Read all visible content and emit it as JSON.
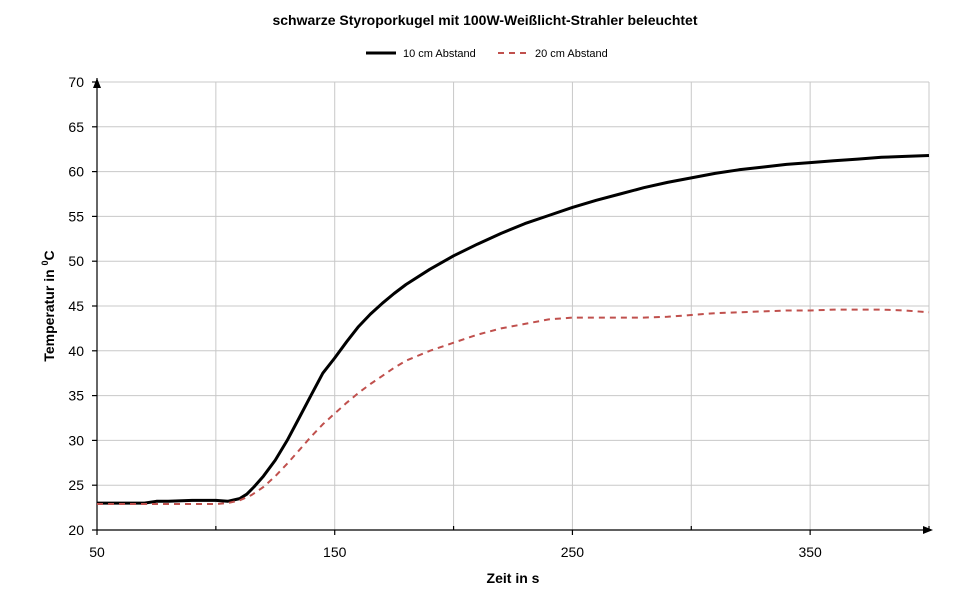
{
  "chart_data": {
    "type": "line",
    "title": "schwarze Styroporkugel mit 100W-Weißlicht-Strahler beleuchtet",
    "xlabel": "Zeit in s",
    "ylabel": "Temperatur in ",
    "ylabel_sup": "0",
    "ylabel_unit": "C",
    "xlim": [
      50,
      400
    ],
    "ylim": [
      20,
      70
    ],
    "x_ticks": [
      50,
      150,
      250,
      350
    ],
    "x_tick_labels": [
      "50",
      "150",
      "250",
      "350"
    ],
    "x_minor_ticks": [
      100,
      200,
      300,
      400
    ],
    "y_ticks": [
      20,
      25,
      30,
      35,
      40,
      45,
      50,
      55,
      60,
      65,
      70
    ],
    "y_tick_labels": [
      "20",
      "25",
      "30",
      "35",
      "40",
      "45",
      "50",
      "55",
      "60",
      "65",
      "70"
    ],
    "grid": true,
    "legend_position": "top-center",
    "series": [
      {
        "name": "10 cm Abstand",
        "color": "#000000",
        "style": "solid",
        "x": [
          50,
          60,
          70,
          75,
          80,
          90,
          100,
          105,
          110,
          113,
          116,
          120,
          125,
          130,
          135,
          140,
          145,
          150,
          155,
          160,
          165,
          170,
          175,
          180,
          190,
          200,
          210,
          220,
          230,
          240,
          250,
          260,
          270,
          280,
          290,
          300,
          310,
          320,
          330,
          340,
          350,
          360,
          370,
          380,
          390,
          400
        ],
        "y": [
          23,
          23,
          23,
          23.2,
          23.2,
          23.3,
          23.3,
          23.2,
          23.5,
          24,
          24.8,
          26,
          27.8,
          30,
          32.5,
          35,
          37.5,
          39.2,
          41,
          42.7,
          44.1,
          45.3,
          46.4,
          47.4,
          49.1,
          50.6,
          51.9,
          53.1,
          54.2,
          55.1,
          56,
          56.8,
          57.5,
          58.2,
          58.8,
          59.3,
          59.8,
          60.2,
          60.5,
          60.8,
          61,
          61.2,
          61.4,
          61.6,
          61.7,
          61.8
        ]
      },
      {
        "name": "20 cm Abstand",
        "color": "#c0504d",
        "style": "dashed",
        "x": [
          50,
          60,
          70,
          80,
          90,
          100,
          105,
          110,
          115,
          120,
          125,
          130,
          135,
          140,
          145,
          150,
          155,
          160,
          165,
          170,
          175,
          180,
          190,
          200,
          210,
          220,
          230,
          240,
          250,
          260,
          270,
          280,
          290,
          300,
          310,
          320,
          330,
          340,
          350,
          360,
          370,
          380,
          390,
          400
        ],
        "y": [
          22.9,
          22.9,
          22.9,
          22.9,
          22.9,
          22.9,
          23,
          23.3,
          23.9,
          24.8,
          26,
          27.4,
          28.9,
          30.4,
          31.8,
          33,
          34.2,
          35.3,
          36.3,
          37.2,
          38.1,
          38.9,
          40,
          40.9,
          41.8,
          42.5,
          43,
          43.5,
          43.7,
          43.7,
          43.7,
          43.7,
          43.8,
          44,
          44.2,
          44.3,
          44.4,
          44.5,
          44.5,
          44.6,
          44.6,
          44.6,
          44.5,
          44.3
        ]
      }
    ]
  }
}
